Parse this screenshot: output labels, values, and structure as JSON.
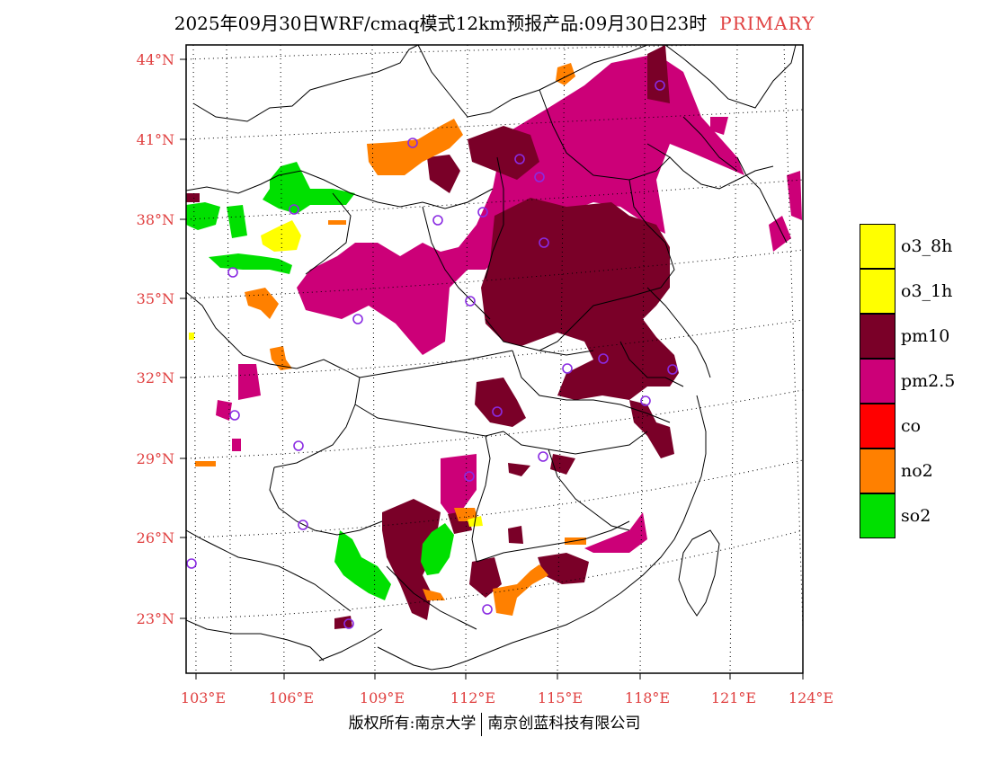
{
  "header": {
    "title": "2025年09月30日WRF/cmaq模式12km预报产品:09月30日23时",
    "tag": "PRIMARY"
  },
  "axes": {
    "lat_labels": [
      "44°N",
      "41°N",
      "38°N",
      "35°N",
      "32°N",
      "29°N",
      "26°N",
      "23°N"
    ],
    "lon_labels": [
      "103°E",
      "106°E",
      "109°E",
      "112°E",
      "115°E",
      "118°E",
      "121°E",
      "124°E"
    ]
  },
  "legend": {
    "items": [
      {
        "label": "o3_8h",
        "color": "#ffff00"
      },
      {
        "label": "o3_1h",
        "color": "#ffff00"
      },
      {
        "label": "pm10",
        "color": "#7a0028"
      },
      {
        "label": "pm2.5",
        "color": "#cc0078"
      },
      {
        "label": "co",
        "color": "#ff0000"
      },
      {
        "label": "no2",
        "color": "#ff8000"
      },
      {
        "label": "so2",
        "color": "#00e000"
      }
    ]
  },
  "footer": {
    "copyright": "版权所有:南京大学",
    "company": "南京创蓝科技有限公司"
  },
  "colors": {
    "axis_label": "#e04040",
    "station": "#8a2be2"
  }
}
